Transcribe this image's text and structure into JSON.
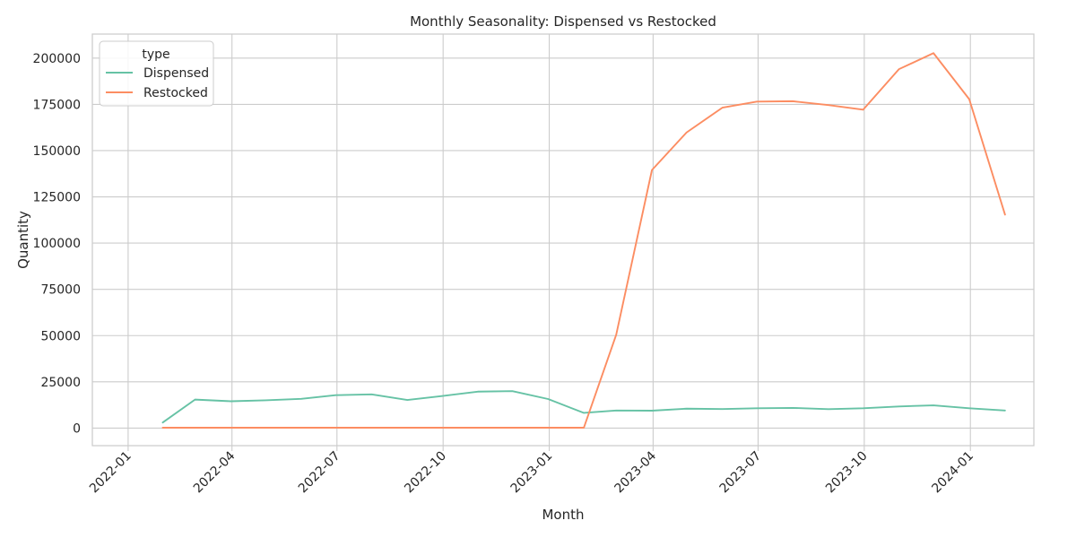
{
  "chart_data": {
    "type": "line",
    "title": "Monthly Seasonality: Dispensed vs Restocked",
    "xlabel": "Month",
    "ylabel": "Quantity",
    "x_axis_type": "date",
    "x_range": [
      "2021-12-01",
      "2024-02-25"
    ],
    "xticks": [
      {
        "date": "2022-01-01",
        "label": "2022-01"
      },
      {
        "date": "2022-04-01",
        "label": "2022-04"
      },
      {
        "date": "2022-07-01",
        "label": "2022-07"
      },
      {
        "date": "2022-10-01",
        "label": "2022-10"
      },
      {
        "date": "2023-01-01",
        "label": "2023-01"
      },
      {
        "date": "2023-04-01",
        "label": "2023-04"
      },
      {
        "date": "2023-07-01",
        "label": "2023-07"
      },
      {
        "date": "2023-10-01",
        "label": "2023-10"
      },
      {
        "date": "2024-01-01",
        "label": "2024-01"
      }
    ],
    "xtick_rotation_deg": 45,
    "ylim": [
      -9500,
      213000
    ],
    "yticks": [
      0,
      25000,
      50000,
      75000,
      100000,
      125000,
      150000,
      175000,
      200000
    ],
    "grid": true,
    "legend": {
      "title": "type",
      "placement": "top-left"
    },
    "x": [
      "2022-01-31",
      "2022-02-28",
      "2022-03-31",
      "2022-04-30",
      "2022-05-31",
      "2022-06-30",
      "2022-07-31",
      "2022-08-31",
      "2022-09-30",
      "2022-10-31",
      "2022-11-30",
      "2022-12-31",
      "2023-01-31",
      "2023-02-28",
      "2023-03-31",
      "2023-04-30",
      "2023-05-31",
      "2023-06-30",
      "2023-07-31",
      "2023-08-31",
      "2023-09-30",
      "2023-10-31",
      "2023-11-30",
      "2023-12-31",
      "2024-01-31"
    ],
    "series": [
      {
        "name": "Dispensed",
        "color": "#66c2a5",
        "values": [
          3000,
          15400,
          14500,
          15000,
          15800,
          17800,
          18200,
          15200,
          17300,
          19700,
          20000,
          15700,
          8200,
          9500,
          9400,
          10500,
          10300,
          10700,
          10900,
          10200,
          10700,
          11700,
          12300,
          10700,
          9500
        ]
      },
      {
        "name": "Restocked",
        "color": "#fc8d62",
        "values": [
          200,
          200,
          200,
          200,
          200,
          200,
          200,
          200,
          200,
          200,
          200,
          200,
          200,
          50400,
          139500,
          159800,
          173200,
          176500,
          176700,
          174600,
          172100,
          194000,
          202700,
          177800,
          115400
        ]
      }
    ]
  }
}
